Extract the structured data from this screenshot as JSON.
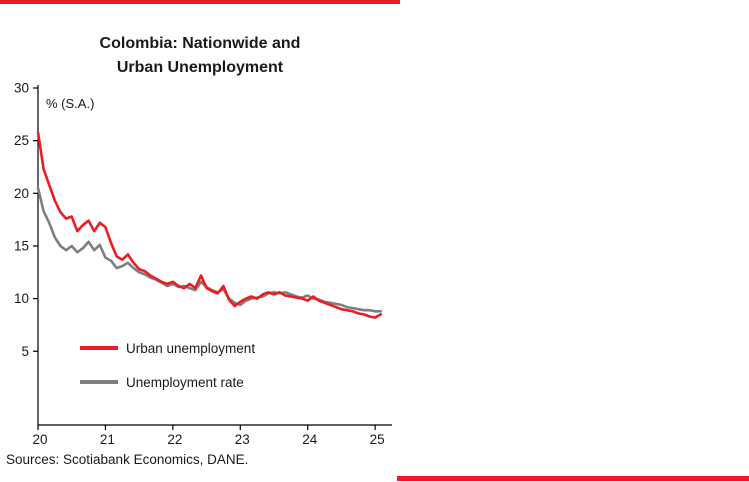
{
  "page": {
    "background": "#ffffff",
    "accent_red": "#ec1c24"
  },
  "chart": {
    "title_lines": [
      "Colombia: Nationwide and",
      "Urban Unemployment"
    ],
    "unit_label": "% (S.A.)",
    "source": "Sources: Scotiabank Economics, DANE.",
    "legend": [
      {
        "label": "Urban unemployment",
        "color": "#ec1c24"
      },
      {
        "label": "Unemployment rate",
        "color": "#7f7f7f"
      }
    ]
  },
  "chart_data": {
    "type": "line",
    "title": "Colombia: Nationwide and Urban Unemployment",
    "ylabel": "% (S.A.)",
    "xlabel": "",
    "grid": false,
    "legend_position": "inside-lower-left",
    "x_start_year": 2020,
    "x_frequency": "monthly",
    "xlim": [
      2020,
      2025.25
    ],
    "ylim": [
      -2,
      30
    ],
    "y_ticks": [
      5,
      10,
      15,
      20,
      25,
      30
    ],
    "x_ticks": [
      {
        "value": 2020,
        "label": "20"
      },
      {
        "value": 2021,
        "label": "21"
      },
      {
        "value": 2022,
        "label": "22"
      },
      {
        "value": 2023,
        "label": "23"
      },
      {
        "value": 2024,
        "label": "24"
      },
      {
        "value": 2025,
        "label": "25"
      }
    ],
    "series": [
      {
        "name": "Urban unemployment",
        "color": "#ec1c24",
        "values": [
          25.8,
          22.3,
          20.8,
          19.3,
          18.2,
          17.6,
          17.8,
          16.4,
          17.0,
          17.4,
          16.4,
          17.2,
          16.8,
          15.3,
          14.0,
          13.7,
          14.2,
          13.4,
          12.8,
          12.6,
          12.2,
          11.9,
          11.6,
          11.4,
          11.6,
          11.2,
          11.0,
          11.4,
          11.0,
          12.2,
          11.0,
          10.7,
          10.5,
          11.2,
          9.9,
          9.3,
          9.7,
          10.0,
          10.2,
          10.0,
          10.4,
          10.6,
          10.4,
          10.6,
          10.3,
          10.2,
          10.1,
          10.0,
          9.8,
          10.2,
          9.8,
          9.6,
          9.4,
          9.2,
          9.0,
          8.9,
          8.8,
          8.6,
          8.5,
          8.3,
          8.2,
          8.5
        ]
      },
      {
        "name": "Unemployment rate",
        "color": "#7f7f7f",
        "values": [
          20.5,
          18.3,
          17.2,
          15.8,
          15.0,
          14.6,
          15.0,
          14.4,
          14.8,
          15.4,
          14.6,
          15.1,
          13.9,
          13.6,
          12.9,
          13.1,
          13.4,
          12.9,
          12.5,
          12.3,
          12.0,
          11.8,
          11.5,
          11.2,
          11.4,
          11.1,
          11.2,
          11.0,
          10.8,
          11.6,
          11.1,
          10.8,
          10.6,
          10.9,
          10.0,
          9.6,
          9.4,
          9.8,
          10.0,
          10.1,
          10.2,
          10.5,
          10.6,
          10.5,
          10.6,
          10.4,
          10.2,
          10.1,
          10.3,
          10.0,
          9.9,
          9.7,
          9.6,
          9.5,
          9.4,
          9.2,
          9.1,
          9.0,
          8.9,
          8.9,
          8.8,
          8.8
        ]
      }
    ],
    "source": "Sources: Scotiabank Economics, DANE."
  }
}
